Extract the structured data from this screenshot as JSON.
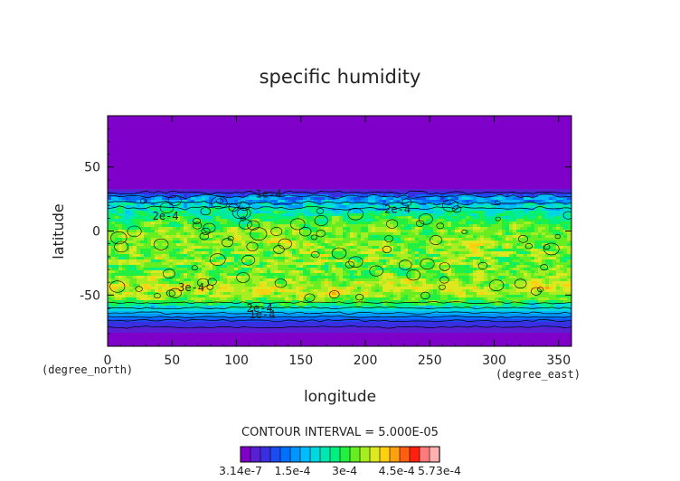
{
  "chart_data": {
    "type": "heatmap",
    "title": "specific humidity",
    "xlabel": "longitude",
    "ylabel": "latitude",
    "x_units": "(degree_east)",
    "y_units": "(degree_north)",
    "xlim": [
      0,
      360
    ],
    "ylim": [
      -90,
      90
    ],
    "x_ticks": [
      0,
      50,
      100,
      150,
      200,
      250,
      300,
      350
    ],
    "y_ticks": [
      -50,
      0,
      50
    ],
    "contour_interval_text": "CONTOUR INTERVAL = 5.000E-05",
    "contour_labels": [
      {
        "text": "1e-4",
        "x": 125,
        "y": 26
      },
      {
        "text": "2e-4",
        "x": 45,
        "y": 9
      },
      {
        "text": "2e-4",
        "x": 225,
        "y": 14
      },
      {
        "text": "3e-4",
        "x": 65,
        "y": -47
      },
      {
        "text": "2e-4",
        "x": 118,
        "y": -63
      },
      {
        "text": "1e-4",
        "x": 120,
        "y": -68
      }
    ],
    "latitude_profile": {
      "lat": [
        -90,
        -80,
        -72,
        -66,
        -60,
        -55,
        -50,
        -45,
        -40,
        -30,
        -20,
        -10,
        0,
        10,
        20,
        25,
        30,
        32,
        40,
        60,
        90
      ],
      "value": [
        3.14e-07,
        2e-05,
        8e-05,
        0.00015,
        0.00022,
        0.0003,
        0.00035,
        0.00036,
        0.00034,
        0.00032,
        0.00033,
        0.00034,
        0.00033,
        0.00028,
        0.0002,
        0.00015,
        8e-05,
        3e-05,
        1e-05,
        1e-06,
        3.14e-07
      ]
    },
    "colorbar": {
      "min": 3.14e-07,
      "max": 0.000573,
      "tick_labels": [
        "3.14e-7",
        "1.5e-4",
        "3e-4",
        "4.5e-4",
        "5.73e-4"
      ],
      "tick_values": [
        3.14e-07,
        0.00015,
        0.0003,
        0.00045,
        0.000573
      ],
      "colors": [
        "#7f00c8",
        "#5a1fd2",
        "#3a2fe0",
        "#1a4cf0",
        "#0070ff",
        "#0096ff",
        "#00bcff",
        "#00d8e0",
        "#00e8b0",
        "#00f080",
        "#22f040",
        "#66ee22",
        "#a6ee22",
        "#dde820",
        "#ffd010",
        "#ffa010",
        "#ff6010",
        "#ff2010",
        "#ff7a7a",
        "#ffb0b0"
      ]
    }
  }
}
